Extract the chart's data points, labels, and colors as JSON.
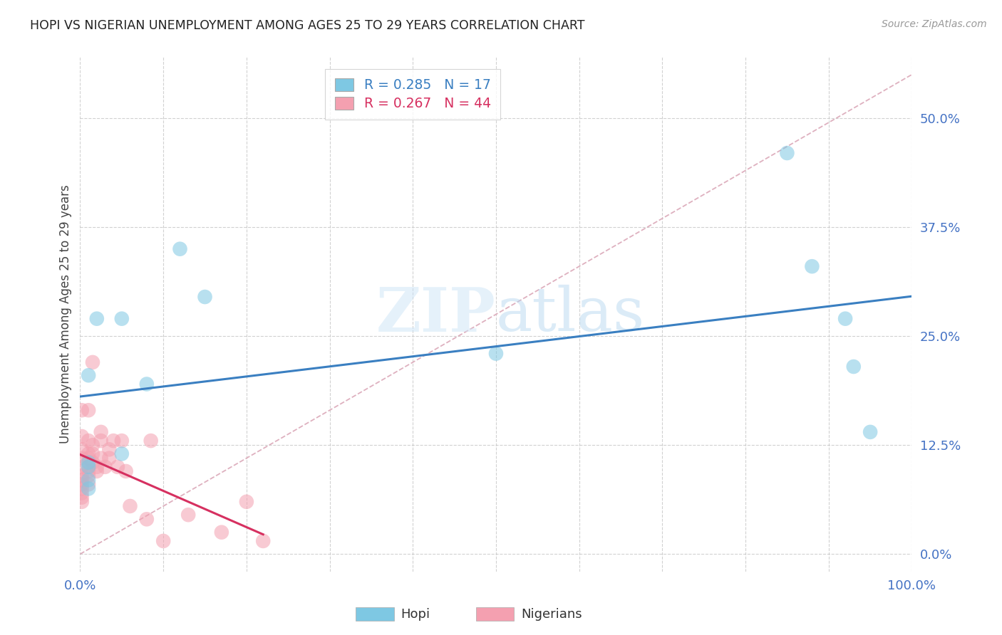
{
  "title": "HOPI VS NIGERIAN UNEMPLOYMENT AMONG AGES 25 TO 29 YEARS CORRELATION CHART",
  "source": "Source: ZipAtlas.com",
  "ylabel": "Unemployment Among Ages 25 to 29 years",
  "watermark": "ZIPatlas",
  "hopi_R": 0.285,
  "hopi_N": 17,
  "nigerian_R": 0.267,
  "nigerian_N": 44,
  "xlim": [
    0.0,
    1.0
  ],
  "ylim": [
    -0.02,
    0.57
  ],
  "yticks": [
    0.0,
    0.125,
    0.25,
    0.375,
    0.5
  ],
  "ytick_labels": [
    "0.0%",
    "12.5%",
    "25.0%",
    "37.5%",
    "50.0%"
  ],
  "xticks": [
    0.0,
    0.1,
    0.2,
    0.3,
    0.4,
    0.5,
    0.6,
    0.7,
    0.8,
    0.9,
    1.0
  ],
  "xtick_labels": [
    "0.0%",
    "",
    "",
    "",
    "",
    "",
    "",
    "",
    "",
    "",
    "100.0%"
  ],
  "hopi_color": "#7ec8e3",
  "nigerian_color": "#f4a0b0",
  "hopi_line_color": "#3a7fc1",
  "nigerian_line_color": "#d63060",
  "diagonal_color": "#dba8b8",
  "background_color": "#ffffff",
  "grid_color": "#cccccc",
  "hopi_points": [
    [
      0.01,
      0.205
    ],
    [
      0.01,
      0.105
    ],
    [
      0.01,
      0.1
    ],
    [
      0.01,
      0.085
    ],
    [
      0.01,
      0.075
    ],
    [
      0.02,
      0.27
    ],
    [
      0.05,
      0.27
    ],
    [
      0.05,
      0.115
    ],
    [
      0.08,
      0.195
    ],
    [
      0.12,
      0.35
    ],
    [
      0.15,
      0.295
    ],
    [
      0.5,
      0.23
    ],
    [
      0.85,
      0.46
    ],
    [
      0.88,
      0.33
    ],
    [
      0.92,
      0.27
    ],
    [
      0.93,
      0.215
    ],
    [
      0.95,
      0.14
    ]
  ],
  "nigerian_points": [
    [
      0.002,
      0.165
    ],
    [
      0.002,
      0.135
    ],
    [
      0.002,
      0.12
    ],
    [
      0.002,
      0.11
    ],
    [
      0.002,
      0.1
    ],
    [
      0.002,
      0.09
    ],
    [
      0.002,
      0.085
    ],
    [
      0.002,
      0.08
    ],
    [
      0.002,
      0.075
    ],
    [
      0.002,
      0.07
    ],
    [
      0.002,
      0.065
    ],
    [
      0.002,
      0.06
    ],
    [
      0.01,
      0.165
    ],
    [
      0.01,
      0.13
    ],
    [
      0.01,
      0.115
    ],
    [
      0.01,
      0.11
    ],
    [
      0.01,
      0.1
    ],
    [
      0.01,
      0.095
    ],
    [
      0.01,
      0.09
    ],
    [
      0.01,
      0.08
    ],
    [
      0.015,
      0.22
    ],
    [
      0.015,
      0.125
    ],
    [
      0.015,
      0.115
    ],
    [
      0.015,
      0.105
    ],
    [
      0.02,
      0.1
    ],
    [
      0.02,
      0.095
    ],
    [
      0.025,
      0.14
    ],
    [
      0.025,
      0.13
    ],
    [
      0.025,
      0.11
    ],
    [
      0.03,
      0.1
    ],
    [
      0.035,
      0.12
    ],
    [
      0.035,
      0.11
    ],
    [
      0.04,
      0.13
    ],
    [
      0.045,
      0.1
    ],
    [
      0.05,
      0.13
    ],
    [
      0.055,
      0.095
    ],
    [
      0.06,
      0.055
    ],
    [
      0.08,
      0.04
    ],
    [
      0.085,
      0.13
    ],
    [
      0.1,
      0.015
    ],
    [
      0.13,
      0.045
    ],
    [
      0.17,
      0.025
    ],
    [
      0.2,
      0.06
    ],
    [
      0.22,
      0.015
    ]
  ]
}
